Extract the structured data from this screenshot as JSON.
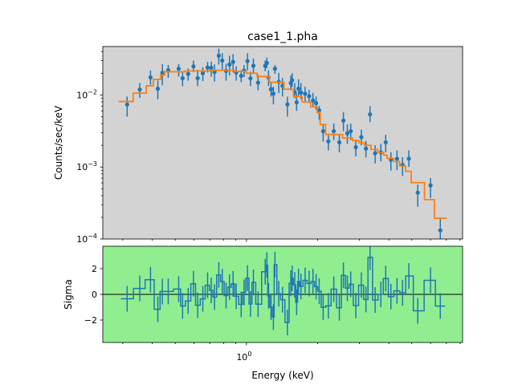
{
  "chart_data": [
    {
      "type": "scatter",
      "title": "case1_1.pha",
      "xlabel": "",
      "ylabel": "Counts/sec/keV",
      "xscale": "log",
      "yscale": "log",
      "xlim": [
        0.247,
        8.2
      ],
      "ylim": [
        0.0001,
        0.047
      ],
      "background": "#d3d3d3",
      "yticks": [
        {
          "value": 0.01,
          "base": "10",
          "exp": "−2"
        },
        {
          "value": 0.001,
          "base": "10",
          "exp": "−3"
        },
        {
          "value": 0.0001,
          "base": "10",
          "exp": "−4"
        }
      ],
      "data_color": "#1f77b4",
      "model_color": "#ff7f0e",
      "series": [
        {
          "name": "data",
          "columns": [
            "energy_keV",
            "value",
            "err_high",
            "err_low"
          ],
          "points": [
            [
              0.313,
              0.00736,
              0.0095,
              0.005
            ],
            [
              0.354,
              0.0119,
              0.0146,
              0.0091
            ],
            [
              0.393,
              0.0175,
              0.0219,
              0.0139
            ],
            [
              0.422,
              0.0122,
              0.0158,
              0.0087
            ],
            [
              0.441,
              0.0203,
              0.0269,
              0.0136
            ],
            [
              0.467,
              0.0221,
              0.026,
              0.0173
            ],
            [
              0.517,
              0.0231,
              0.0269,
              0.018
            ],
            [
              0.537,
              0.0171,
              0.0214,
              0.0132
            ],
            [
              0.567,
              0.0196,
              0.0233,
              0.0158
            ],
            [
              0.597,
              0.0249,
              0.03,
              0.0208
            ],
            [
              0.622,
              0.0171,
              0.0223,
              0.0132
            ],
            [
              0.654,
              0.02,
              0.0243,
              0.0156
            ],
            [
              0.685,
              0.024,
              0.0288,
              0.0205
            ],
            [
              0.71,
              0.0238,
              0.029,
              0.018
            ],
            [
              0.733,
              0.0208,
              0.0265,
              0.0153
            ],
            [
              0.764,
              0.035,
              0.044,
              0.0264
            ],
            [
              0.79,
              0.03,
              0.038,
              0.022
            ],
            [
              0.82,
              0.0215,
              0.027,
              0.0158
            ],
            [
              0.848,
              0.0264,
              0.035,
              0.0186
            ],
            [
              0.878,
              0.0288,
              0.037,
              0.0205
            ],
            [
              0.905,
              0.0205,
              0.025,
              0.0158
            ],
            [
              0.95,
              0.0184,
              0.022,
              0.015
            ],
            [
              0.977,
              0.0218,
              0.026,
              0.0178
            ],
            [
              1.01,
              0.0295,
              0.038,
              0.022
            ],
            [
              1.04,
              0.017,
              0.021,
              0.0133
            ],
            [
              1.07,
              0.0254,
              0.032,
              0.0196
            ],
            [
              1.12,
              0.0148,
              0.019,
              0.0116
            ],
            [
              1.2,
              0.0254,
              0.03,
              0.0212
            ],
            [
              1.22,
              0.0278,
              0.033,
              0.0235
            ],
            [
              1.24,
              0.0175,
              0.022,
              0.0133
            ],
            [
              1.27,
              0.012,
              0.015,
              0.0095
            ],
            [
              1.3,
              0.0104,
              0.013,
              0.0074
            ],
            [
              1.32,
              0.0231,
              0.026,
              0.0196
            ],
            [
              1.37,
              0.0152,
              0.0203,
              0.0106
            ],
            [
              1.42,
              0.0134,
              0.0172,
              0.0095
            ],
            [
              1.49,
              0.0074,
              0.0095,
              0.005
            ],
            [
              1.54,
              0.0146,
              0.0185,
              0.0116
            ],
            [
              1.56,
              0.016,
              0.02,
              0.0128
            ],
            [
              1.6,
              0.0109,
              0.0146,
              0.009
            ],
            [
              1.63,
              0.0079,
              0.0105,
              0.006
            ],
            [
              1.66,
              0.0122,
              0.0165,
              0.0095
            ],
            [
              1.7,
              0.0108,
              0.0146,
              0.0087
            ],
            [
              1.77,
              0.0104,
              0.013,
              0.0082
            ],
            [
              1.84,
              0.0096,
              0.0118,
              0.0077
            ],
            [
              1.91,
              0.0084,
              0.0107,
              0.0068
            ],
            [
              1.97,
              0.0077,
              0.0095,
              0.0062
            ],
            [
              2.03,
              0.0061,
              0.007,
              0.0045
            ],
            [
              2.11,
              0.00314,
              0.0039,
              0.00225
            ],
            [
              2.22,
              0.00227,
              0.0029,
              0.0017
            ],
            [
              2.34,
              0.00314,
              0.004,
              0.00237
            ],
            [
              2.47,
              0.0022,
              0.0028,
              0.0016
            ],
            [
              2.57,
              0.0044,
              0.0058,
              0.00314
            ],
            [
              2.67,
              0.00293,
              0.0039,
              0.0021
            ],
            [
              2.76,
              0.00314,
              0.004,
              0.00237
            ],
            [
              2.9,
              0.00188,
              0.0024,
              0.0014
            ],
            [
              3.06,
              0.0026,
              0.0033,
              0.002
            ],
            [
              3.2,
              0.0018,
              0.0023,
              0.00136
            ],
            [
              3.33,
              0.00537,
              0.007,
              0.0042
            ],
            [
              3.5,
              0.00155,
              0.002,
              0.00112
            ],
            [
              3.7,
              0.0016,
              0.0021,
              0.0012
            ],
            [
              3.88,
              0.0022,
              0.0028,
              0.0016
            ],
            [
              4.08,
              0.00126,
              0.0016,
              0.00089
            ],
            [
              4.33,
              0.0013,
              0.0017,
              0.0009
            ],
            [
              4.57,
              0.00107,
              0.00137,
              0.00075
            ],
            [
              4.86,
              0.0013,
              0.0017,
              0.001
            ],
            [
              5.3,
              0.00044,
              0.00057,
              0.00028
            ],
            [
              6.0,
              0.000555,
              0.0007,
              0.00037
            ],
            [
              6.6,
              0.000132,
              0.0002,
              8e-05
            ]
          ]
        },
        {
          "name": "model",
          "columns": [
            "e_lo",
            "e_hi",
            "value"
          ],
          "steps": [
            [
              0.288,
              0.332,
              0.0081
            ],
            [
              0.332,
              0.377,
              0.0106
            ],
            [
              0.377,
              0.404,
              0.0134
            ],
            [
              0.404,
              0.434,
              0.0164
            ],
            [
              0.434,
              0.45,
              0.0188
            ],
            [
              0.45,
              0.55,
              0.021
            ],
            [
              0.55,
              0.7,
              0.0215
            ],
            [
              0.7,
              0.9,
              0.022
            ],
            [
              0.9,
              1.0,
              0.0212
            ],
            [
              1.0,
              1.11,
              0.02
            ],
            [
              1.11,
              1.25,
              0.018
            ],
            [
              1.25,
              1.44,
              0.015
            ],
            [
              1.44,
              1.58,
              0.012
            ],
            [
              1.58,
              1.72,
              0.0095
            ],
            [
              1.72,
              1.87,
              0.008
            ],
            [
              1.87,
              1.99,
              0.0068
            ],
            [
              1.99,
              2.05,
              0.0057
            ],
            [
              2.05,
              2.16,
              0.0039
            ],
            [
              2.16,
              2.55,
              0.00283
            ],
            [
              2.55,
              2.81,
              0.00253
            ],
            [
              2.81,
              2.99,
              0.00233
            ],
            [
              2.99,
              3.15,
              0.00217
            ],
            [
              3.15,
              3.36,
              0.002
            ],
            [
              3.36,
              3.59,
              0.00175
            ],
            [
              3.59,
              3.8,
              0.0016
            ],
            [
              3.8,
              3.93,
              0.00146
            ],
            [
              3.93,
              4.19,
              0.00132
            ],
            [
              4.19,
              4.44,
              0.00119
            ],
            [
              4.44,
              4.71,
              0.00103
            ],
            [
              4.71,
              4.97,
              0.00087
            ],
            [
              4.97,
              5.66,
              0.000607
            ],
            [
              5.66,
              6.23,
              0.000352
            ],
            [
              6.23,
              7.03,
              0.000194
            ]
          ]
        }
      ]
    },
    {
      "type": "line",
      "title": "",
      "xlabel": "Energy (keV)",
      "ylabel": "Sigma",
      "xscale": "log",
      "xlim": [
        0.247,
        8.2
      ],
      "ylim": [
        -3.75,
        3.75
      ],
      "background": "#90ee90",
      "xticks": [
        {
          "value": 1,
          "base": "10",
          "exp": "0"
        }
      ],
      "yticks": [
        {
          "value": 2,
          "label": "2"
        },
        {
          "value": 0,
          "label": "0"
        },
        {
          "value": -2,
          "label": "−2"
        }
      ],
      "series": [
        {
          "name": "residuals",
          "derived_from": "data minus model divided by error"
        }
      ]
    }
  ]
}
